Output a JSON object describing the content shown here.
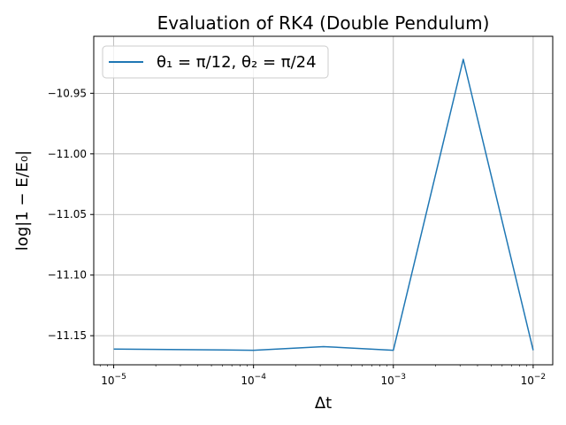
{
  "chart_data": {
    "type": "line",
    "title": "Evaluation of RK4 (Double Pendulum)",
    "xlabel": "Δt",
    "ylabel": "log|1 − E/E₀|",
    "x_scale": "log",
    "xlim": [
      7.2e-06,
      0.0138
    ],
    "ylim": [
      -11.174,
      -10.903
    ],
    "grid": true,
    "legend_position": "top-left",
    "x_ticks": [
      {
        "value": 1e-05,
        "base": "10",
        "exp": "−5"
      },
      {
        "value": 0.0001,
        "base": "10",
        "exp": "−4"
      },
      {
        "value": 0.001,
        "base": "10",
        "exp": "−3"
      },
      {
        "value": 0.01,
        "base": "10",
        "exp": "−2"
      }
    ],
    "y_ticks": [
      {
        "value": -10.95,
        "label": "−10.95"
      },
      {
        "value": -11.0,
        "label": "−11.00"
      },
      {
        "value": -11.05,
        "label": "−11.05"
      },
      {
        "value": -11.1,
        "label": "−11.10"
      },
      {
        "value": -11.15,
        "label": "−11.15"
      }
    ],
    "series": [
      {
        "name": "θ₁ = π/12, θ₂ = π/24",
        "color": "#1f77b4",
        "x": [
          1e-05,
          3.162e-05,
          0.0001,
          0.0003162,
          0.001,
          0.003162,
          0.01
        ],
        "y": [
          -11.161,
          -11.1615,
          -11.162,
          -11.159,
          -11.162,
          -10.922,
          -11.162
        ]
      }
    ]
  }
}
